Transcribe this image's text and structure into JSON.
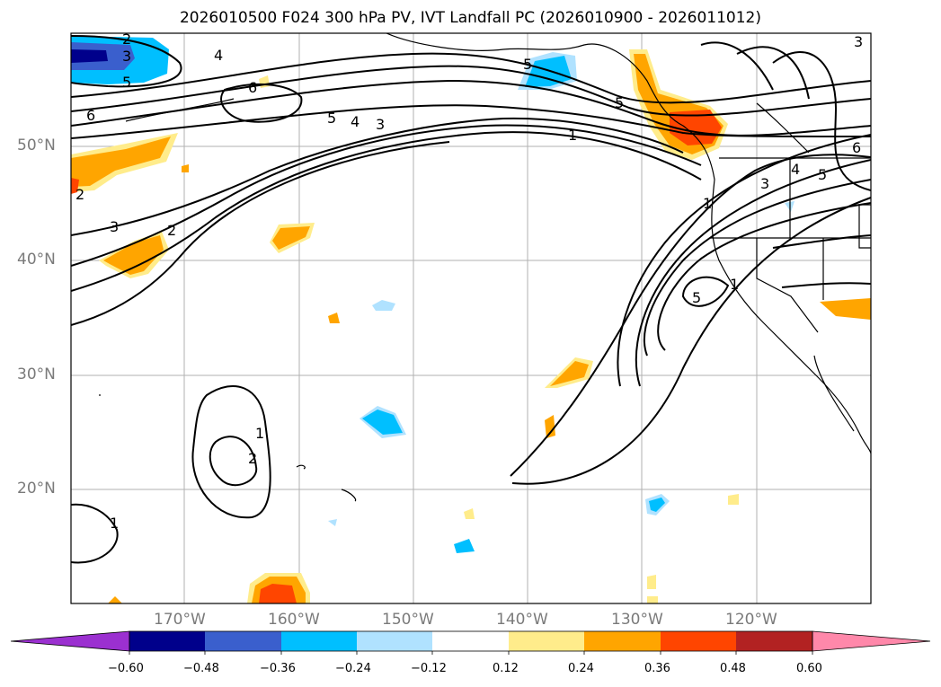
{
  "title": "2026010500 F024 300 hPa PV, IVT Landfall PC (2026010900 - 2026011012)",
  "lat_labels": [
    "50°N",
    "40°N",
    "30°N",
    "20°N"
  ],
  "lon_labels": [
    "170°W",
    "160°W",
    "150°W",
    "140°W",
    "130°W",
    "120°W"
  ],
  "colorbar": {
    "ticks": [
      "−0.60",
      "−0.48",
      "−0.36",
      "−0.24",
      "−0.12",
      "0.12",
      "0.24",
      "0.36",
      "0.48",
      "0.60"
    ],
    "colors": [
      "#9b30d0",
      "#00008b",
      "#3a5fcd",
      "#00bfff",
      "#b0e2ff",
      "#ffffff",
      "#ffec8b",
      "#ffa500",
      "#ff4500",
      "#b22222",
      "#ff88aa"
    ]
  },
  "contour_labels": [
    "2",
    "3",
    "5",
    "4",
    "6",
    "6",
    "5",
    "4",
    "3",
    "1",
    "2",
    "3",
    "2",
    "5",
    "1",
    "1",
    "2",
    "1",
    "3",
    "5",
    "4",
    "5",
    "6",
    "3",
    "5",
    "1"
  ],
  "chart_data": {
    "type": "map",
    "title": "2026010500 F024 300 hPa PV, IVT Landfall PC (2026010900 - 2026011012)",
    "lon_range": [
      -180,
      -110
    ],
    "lat_range": [
      10,
      60
    ],
    "fill_levels": [
      -0.6,
      -0.48,
      -0.36,
      -0.24,
      -0.12,
      0.12,
      0.24,
      0.36,
      0.48,
      0.6
    ],
    "contour_levels": [
      1,
      2,
      3,
      4,
      5,
      6
    ],
    "colorbar_extend": "both"
  }
}
